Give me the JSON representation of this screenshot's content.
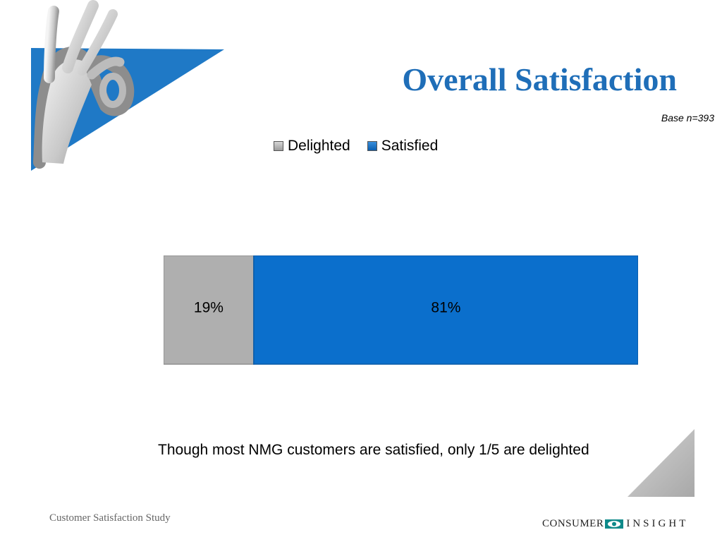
{
  "slide": {
    "title": "Overall Satisfaction",
    "base_note": "Base n=393",
    "caption": "Though most NMG customers are satisfied, only 1/5 are delighted",
    "footer_left": "Customer Satisfaction Study",
    "logo": {
      "word1": "CONSUMER",
      "word2": "INSIGHT",
      "icon": "eye-icon"
    }
  },
  "colors": {
    "title": "#1F6EB8",
    "delighted": "#AFAFAF",
    "satisfied": "#0B6FCC",
    "accent_triangle": "#1F79C6",
    "corner_triangle": "#B8B8B8"
  },
  "chart_data": {
    "type": "bar",
    "orientation": "horizontal",
    "stacked": true,
    "categories": [
      ""
    ],
    "series": [
      {
        "name": "Delighted",
        "values": [
          19
        ],
        "label": "19%"
      },
      {
        "name": "Satisfied",
        "values": [
          81
        ],
        "label": "81%"
      }
    ],
    "xlim": [
      0,
      100
    ],
    "grid": false,
    "legend_position": "top"
  }
}
